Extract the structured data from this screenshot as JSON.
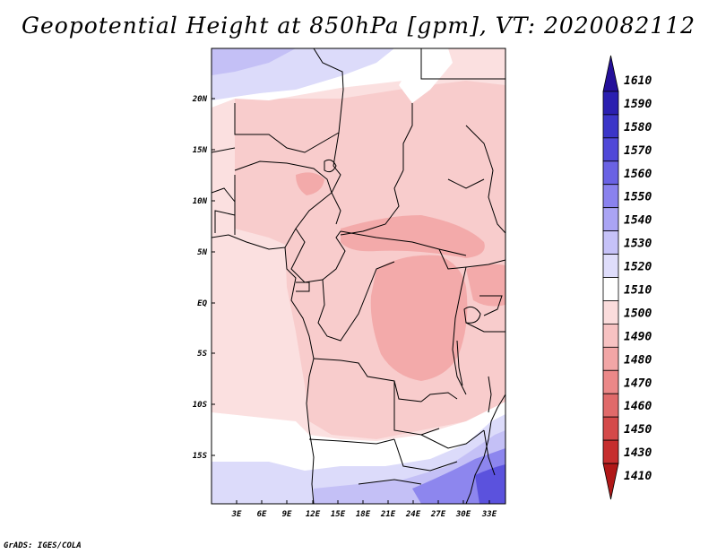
{
  "title": "Geopotential Height at 850hPa [gpm], VT: 2020082112",
  "credit": "GrADS: IGES/COLA",
  "map": {
    "lat_labels": [
      "20N",
      "15N",
      "10N",
      "5N",
      "EQ",
      "5S",
      "10S",
      "15S"
    ],
    "lon_labels": [
      "3E",
      "6E",
      "9E",
      "12E",
      "15E",
      "18E",
      "21E",
      "24E",
      "27E",
      "30E",
      "33E"
    ]
  },
  "colorbar": {
    "levels": [
      "1610",
      "1590",
      "1580",
      "1570",
      "1560",
      "1550",
      "1540",
      "1530",
      "1520",
      "1510",
      "1500",
      "1490",
      "1480",
      "1470",
      "1460",
      "1450",
      "1430",
      "1410"
    ],
    "colors": [
      "#24109a",
      "#2a1fb0",
      "#3b35c8",
      "#5048d8",
      "#6a62e4",
      "#8a82ee",
      "#aaa4f4",
      "#c6c2f8",
      "#dfddfb",
      "#ffffff",
      "#fbdcdc",
      "#f7c2c2",
      "#f2a6a6",
      "#eb8888",
      "#e06a6a",
      "#d44a4a",
      "#c62e2e",
      "#b01818"
    ]
  },
  "field_colors": {
    "ocean": "#fbe0e0",
    "h1500": "#f8cccc",
    "h1490": "#f3aaaa",
    "white": "#ffffff",
    "h1520": "#dcdbfa",
    "h1530": "#c4c0f6",
    "h1550": "#8d86ee",
    "h1570": "#5b52dd"
  }
}
